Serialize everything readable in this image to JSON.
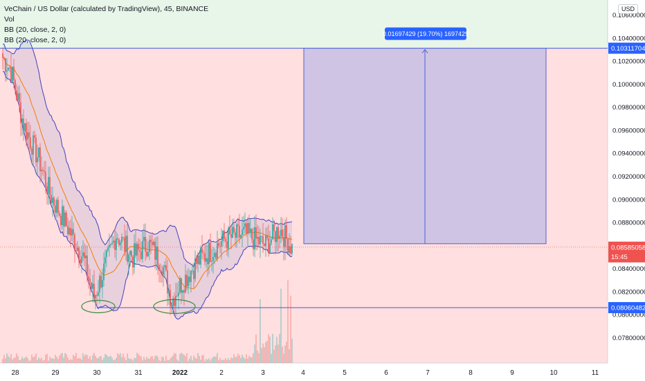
{
  "chart_data": {
    "type": "candlestick",
    "title": "VeChain / US Dollar (calculated by TradingView), 45, BINANCE",
    "indicators": [
      "Vol",
      "BB (20, close, 2, 0)",
      "BB (20, close, 2, 0)"
    ],
    "currency_button": "USD",
    "x_ticks": [
      "28",
      "29",
      "30",
      "31",
      "2022",
      "2",
      "3",
      "4",
      "5",
      "6",
      "7",
      "8",
      "9",
      "10",
      "11"
    ],
    "y_ticks": [
      "0.10600000",
      "0.10400000",
      "0.10200000",
      "0.10000000",
      "0.09800000",
      "0.09600000",
      "0.09400000",
      "0.09200000",
      "0.09000000",
      "0.08800000",
      "0.08600000",
      "0.08400000",
      "0.08200000",
      "0.08000000",
      "0.07800000"
    ],
    "ylim": [
      0.0758,
      0.1073
    ],
    "price_labels": {
      "target": "0.10311704",
      "current": "0.08585058",
      "countdown": "15:45",
      "support": "0.08060482"
    },
    "measure_label": "0.01697429 (19.70%) 1697429",
    "levels": {
      "target": 0.10311704,
      "entry": 0.08615,
      "current": 0.08585058,
      "support": 0.08060482
    },
    "colors": {
      "up": "#26a69a",
      "down": "#ef5350",
      "band": "#3f3fbf",
      "basis": "#f57c00",
      "bg_above": "#e8f5e9",
      "bg_below": "#ffdfdf",
      "measure_fill": "#c8c0e6",
      "label": "#2962ff"
    }
  }
}
